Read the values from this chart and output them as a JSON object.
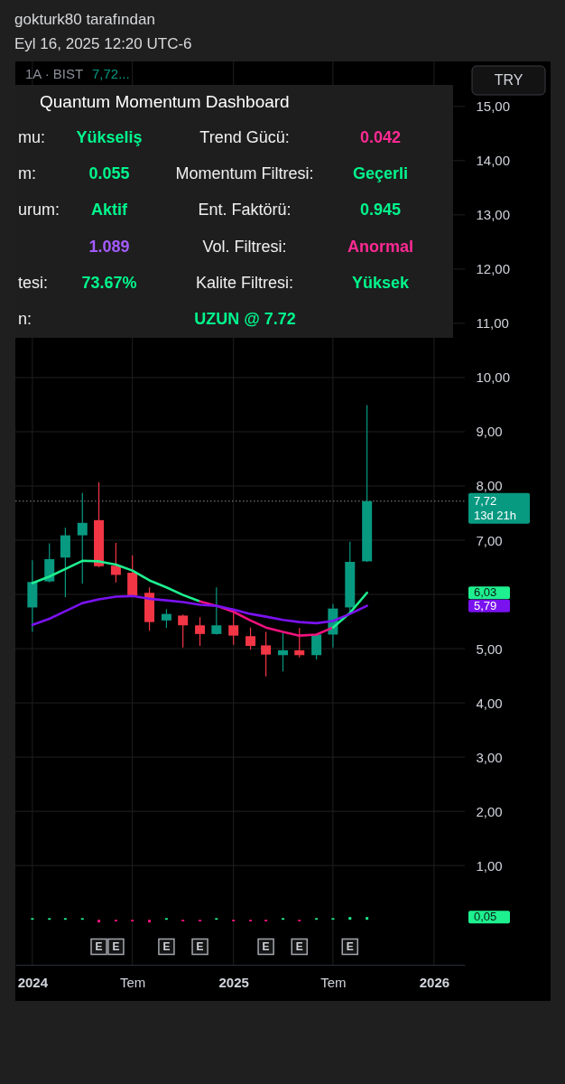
{
  "chart_data": {
    "type": "candlestick",
    "title": "gokturk80 tarafından",
    "subtitle": "Eyl 16, 2025 12:20 UTC-6",
    "ylabel": "TRY",
    "x": [
      "2024-01",
      "2024-02",
      "2024-03",
      "2024-04",
      "2024-05",
      "2024-06",
      "2024-07",
      "2024-08",
      "2024-09",
      "2024-10",
      "2024-11",
      "2024-12",
      "2025-01",
      "2025-02",
      "2025-03",
      "2025-04",
      "2025-05",
      "2025-06",
      "2025-07",
      "2025-08",
      "2025-09"
    ],
    "ohlc": [
      [
        5.76,
        6.63,
        5.31,
        6.23
      ],
      [
        6.24,
        6.94,
        6.22,
        6.65
      ],
      [
        6.68,
        7.23,
        5.95,
        7.09
      ],
      [
        7.09,
        7.87,
        6.2,
        7.32
      ],
      [
        7.37,
        8.07,
        6.5,
        6.52
      ],
      [
        6.53,
        6.95,
        6.22,
        6.36
      ],
      [
        6.4,
        6.72,
        5.97,
        5.98
      ],
      [
        6.03,
        6.13,
        5.33,
        5.49
      ],
      [
        5.52,
        5.73,
        5.38,
        5.64
      ],
      [
        5.61,
        5.63,
        5.02,
        5.43
      ],
      [
        5.43,
        5.58,
        5.05,
        5.27
      ],
      [
        5.27,
        6.13,
        5.26,
        5.43
      ],
      [
        5.43,
        5.66,
        5.07,
        5.24
      ],
      [
        5.23,
        5.39,
        4.98,
        5.05
      ],
      [
        5.06,
        5.31,
        4.49,
        4.89
      ],
      [
        4.88,
        5.29,
        4.58,
        4.97
      ],
      [
        4.97,
        5.38,
        4.84,
        4.88
      ],
      [
        4.88,
        5.28,
        4.8,
        5.26
      ],
      [
        5.26,
        5.82,
        5.02,
        5.74
      ],
      [
        5.76,
        6.97,
        5.66,
        6.6
      ],
      [
        6.61,
        9.49,
        6.6,
        7.72
      ]
    ],
    "colors": [
      "#089981",
      "#089981",
      "#089981",
      "#089981",
      "#f23645",
      "#f23645",
      "#f23645",
      "#f23645",
      "#089981",
      "#f23645",
      "#f23645",
      "#089981",
      "#f23645",
      "#f23645",
      "#f23645",
      "#089981",
      "#f23645",
      "#089981",
      "#089981",
      "#089981",
      "#089981"
    ],
    "series": [
      {
        "type": "line",
        "color": "#1ef08f",
        "x": [
          "2024-01",
          "2024-02",
          "2024-03",
          "2024-04",
          "2024-05",
          "2024-06",
          "2024-07",
          "2024-08",
          "2024-09",
          "2024-10",
          "2024-11"
        ],
        "values": [
          6.21,
          6.33,
          6.47,
          6.62,
          6.61,
          6.55,
          6.44,
          6.26,
          6.13,
          5.99,
          5.87
        ]
      },
      {
        "type": "line",
        "color": "#f2127e",
        "x": [
          "2024-11",
          "2024-12",
          "2025-01",
          "2025-02",
          "2025-03",
          "2025-04",
          "2025-05",
          "2025-06",
          "2025-07"
        ],
        "values": [
          5.87,
          5.79,
          5.68,
          5.52,
          5.39,
          5.31,
          5.24,
          5.26,
          5.39
        ]
      },
      {
        "type": "line",
        "color": "#1ef08f",
        "x": [
          "2025-07",
          "2025-08",
          "2025-09"
        ],
        "values": [
          5.39,
          5.66,
          6.03
        ]
      },
      {
        "type": "line",
        "color": "#7a12f0",
        "values": [
          5.44,
          5.55,
          5.69,
          5.84,
          5.91,
          5.96,
          5.97,
          5.92,
          5.89,
          5.86,
          5.81,
          5.79,
          5.72,
          5.64,
          5.59,
          5.53,
          5.49,
          5.47,
          5.51,
          5.64,
          5.79
        ]
      },
      {
        "type": "bar",
        "values": [
          0.03,
          0.03,
          0.03,
          0.03,
          -0.05,
          -0.03,
          -0.03,
          -0.05,
          0.03,
          -0.03,
          -0.03,
          0.03,
          -0.03,
          -0.03,
          -0.03,
          0.03,
          -0.03,
          0.03,
          0.03,
          0.05,
          0.05
        ],
        "colors": [
          "#1ef08f",
          "#1ef08f",
          "#1ef08f",
          "#1ef08f",
          "#f2127e",
          "#f2127e",
          "#f2127e",
          "#f2127e",
          "#1ef08f",
          "#f2127e",
          "#f2127e",
          "#1ef08f",
          "#f2127e",
          "#f2127e",
          "#f2127e",
          "#1ef08f",
          "#f2127e",
          "#1ef08f",
          "#1ef08f",
          "#1ef08f",
          "#1ef08f"
        ]
      }
    ],
    "ref_lines": [
      {
        "axis": "y",
        "value": 7.72,
        "label": "7,72",
        "color": "#8c8f96",
        "line_style": "dotted"
      }
    ],
    "annotations": [
      "1A · BIST",
      "7,72...",
      "13d 21h",
      "6,03",
      "5,79",
      "0,05",
      "Quantum Momentum Dashboard",
      "mu:",
      "Yükseliş",
      "Trend Gücü:",
      "0.042",
      "m:",
      "0.055",
      "Momentum Filtresi:",
      "Geçerli",
      "urum:",
      "Aktif",
      "Ent. Faktörü:",
      "0.945",
      "1.089",
      "Vol. Filtresi:",
      "Anormal",
      "tesi:",
      "73.67%",
      "Kalite Filtresi:",
      "Yüksek",
      "n:",
      "UZUN @ 7.72",
      {
        "text": "E",
        "x": "2024-05"
      },
      {
        "text": "E",
        "x": "2024-06"
      },
      {
        "text": "E",
        "x": "2024-09"
      },
      {
        "text": "E",
        "x": "2024-11"
      },
      {
        "text": "E",
        "x": "2025-03"
      },
      {
        "text": "E",
        "x": "2025-05"
      },
      {
        "text": "E",
        "x": "2025-08"
      }
    ],
    "xlim": [
      "2023-12-01",
      "2026-02-26"
    ],
    "xticks": [
      {
        "value": "2024-01",
        "label": "2024"
      },
      {
        "value": "2024-07",
        "label": "Tem"
      },
      {
        "value": "2025-01",
        "label": "2025"
      },
      {
        "value": "2025-07",
        "label": "Tem"
      },
      {
        "value": "2026-01",
        "label": "2026"
      }
    ],
    "ylim": [
      -0.83,
      15.83
    ],
    "yticks": [
      {
        "value": 1,
        "label": "1,00"
      },
      {
        "value": 2,
        "label": "2,00"
      },
      {
        "value": 3,
        "label": "3,00"
      },
      {
        "value": 4,
        "label": "4,00"
      },
      {
        "value": 5,
        "label": "5,00"
      },
      {
        "value": 6,
        "label": null
      },
      {
        "value": 7,
        "label": "7,00"
      },
      {
        "value": 8,
        "label": "8,00"
      },
      {
        "value": 9,
        "label": "9,00"
      },
      {
        "value": 10,
        "label": "10,00"
      },
      {
        "value": 11,
        "label": "11,00"
      },
      {
        "value": 12,
        "label": "12,00"
      },
      {
        "value": 13,
        "label": "13,00"
      },
      {
        "value": 14,
        "label": "14,00"
      },
      {
        "value": 15,
        "label": "15,00"
      }
    ],
    "grid": true
  }
}
